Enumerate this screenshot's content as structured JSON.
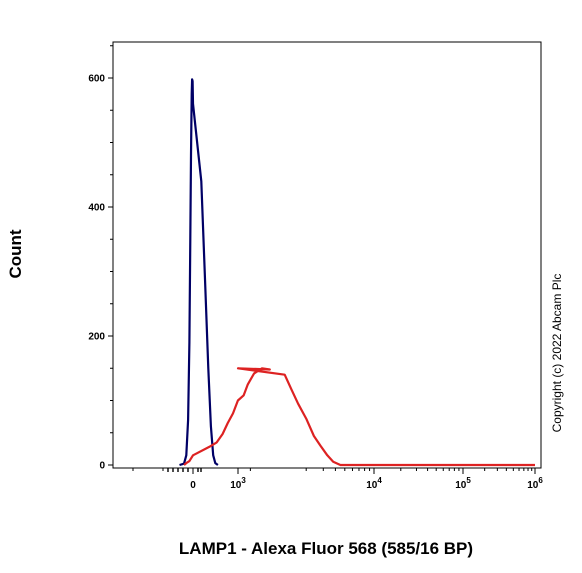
{
  "chart_data": {
    "type": "area",
    "title": "",
    "xlabel": "LAMP1 - Alexa Fluor 568 (585/16 BP)",
    "ylabel": "Count",
    "x_scale": "biexponential",
    "ylim": [
      0,
      655
    ],
    "y_ticks": [
      {
        "value": 0,
        "label": "0"
      },
      {
        "value": 200,
        "label": "200"
      },
      {
        "value": 400,
        "label": "400"
      },
      {
        "value": 600,
        "label": "600"
      }
    ],
    "x_ticks": [
      {
        "value": 0,
        "base": "0",
        "exp": ""
      },
      {
        "value": 1000,
        "base": "10",
        "exp": "3"
      },
      {
        "value": 10000,
        "base": "10",
        "exp": "4"
      },
      {
        "value": 100000,
        "base": "10",
        "exp": "5"
      },
      {
        "value": 1000000,
        "base": "10",
        "exp": "6"
      }
    ],
    "grid": false,
    "legend": "none",
    "annotations": [
      "Copyright (c) 2022 Abcam Plc"
    ],
    "series": [
      {
        "color": "#000066",
        "points": [
          [
            -300,
            0
          ],
          [
            -200,
            2
          ],
          [
            -150,
            15
          ],
          [
            -110,
            70
          ],
          [
            -80,
            190
          ],
          [
            -60,
            350
          ],
          [
            -45,
            480
          ],
          [
            -30,
            575
          ],
          [
            -20,
            598
          ],
          [
            -10,
            595
          ],
          [
            0,
            560
          ],
          [
            15,
            440
          ],
          [
            30,
            280
          ],
          [
            45,
            150
          ],
          [
            60,
            60
          ],
          [
            75,
            15
          ],
          [
            90,
            3
          ],
          [
            110,
            0
          ]
        ]
      },
      {
        "color": "#dd2222",
        "points": [
          [
            -200,
            0
          ],
          [
            -150,
            3
          ],
          [
            -80,
            6
          ],
          [
            0,
            15
          ],
          [
            50,
            28
          ],
          [
            100,
            35
          ],
          [
            150,
            48
          ],
          [
            200,
            65
          ],
          [
            260,
            80
          ],
          [
            320,
            100
          ],
          [
            400,
            108
          ],
          [
            460,
            125
          ],
          [
            560,
            142
          ],
          [
            700,
            150
          ],
          [
            850,
            148
          ],
          [
            1000,
            150
          ],
          [
            1200,
            140
          ],
          [
            1400,
            118
          ],
          [
            1650,
            95
          ],
          [
            2000,
            72
          ],
          [
            2400,
            45
          ],
          [
            2800,
            30
          ],
          [
            3300,
            15
          ],
          [
            3800,
            5
          ],
          [
            4500,
            0
          ],
          [
            1000000,
            0
          ]
        ]
      }
    ]
  }
}
